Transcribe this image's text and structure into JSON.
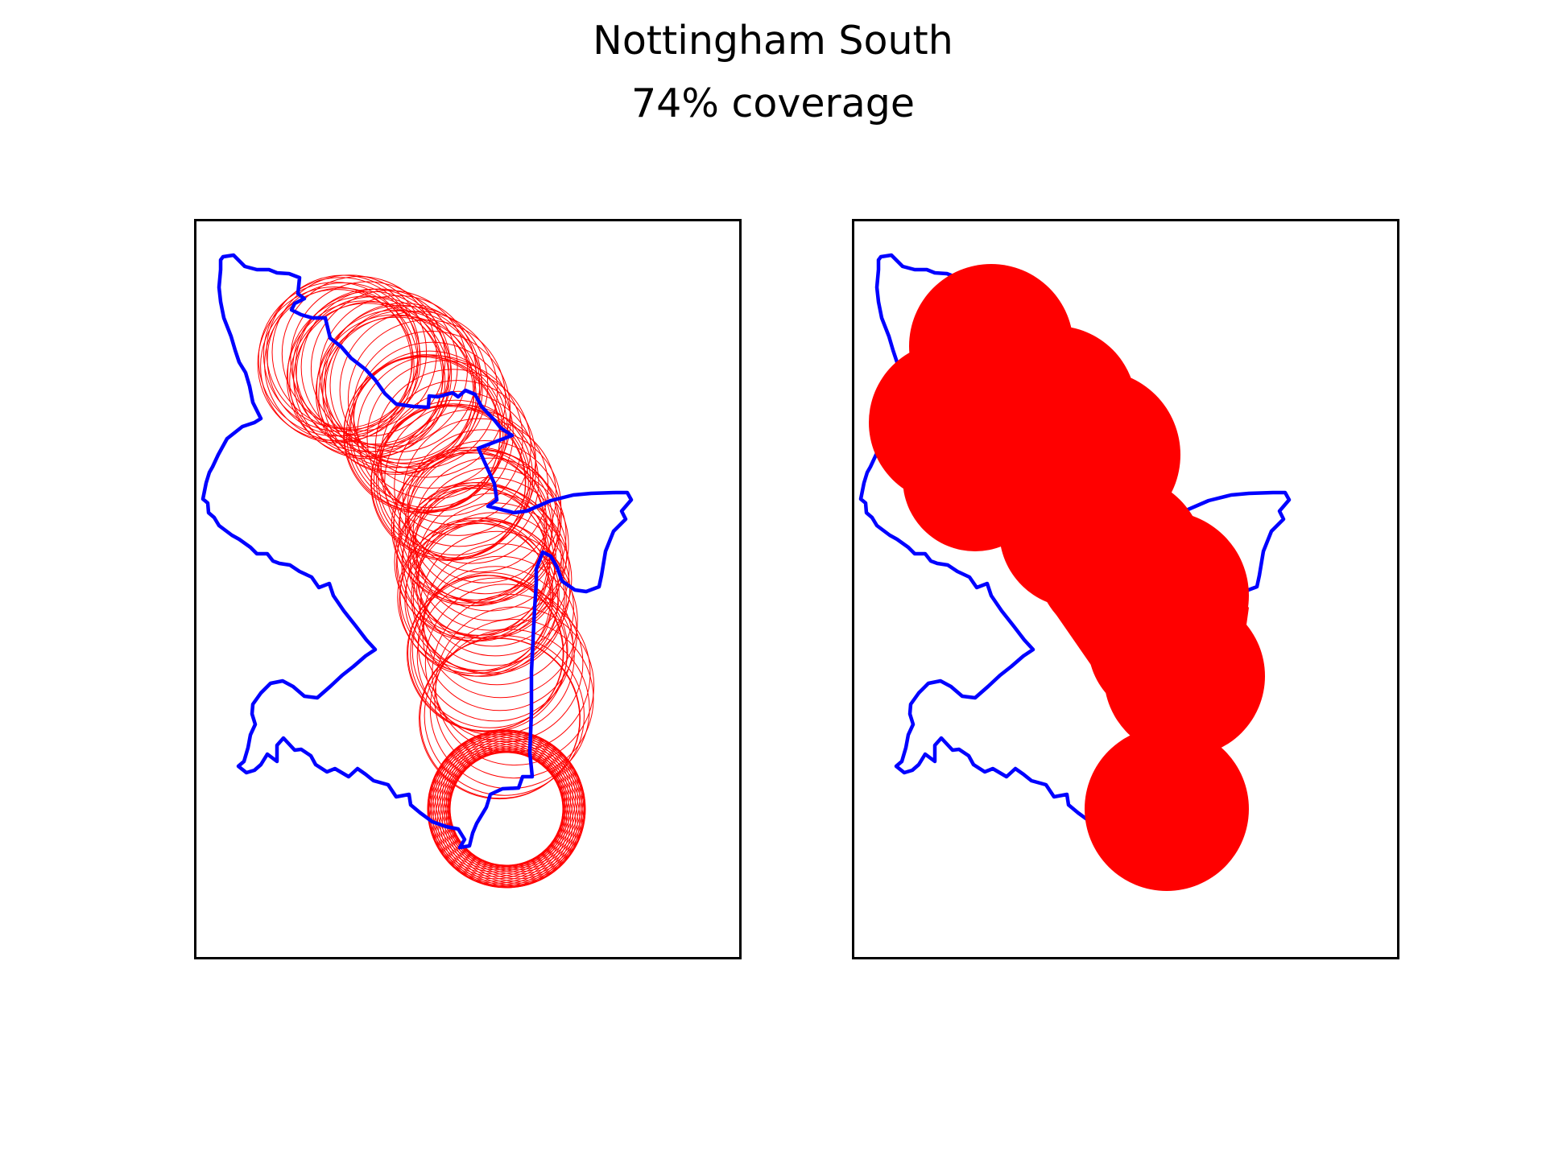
{
  "figure": {
    "title": "Nottingham South",
    "subtitle": "74% coverage"
  },
  "colors": {
    "boundary": "#0000ff",
    "coverage": "#ff0000",
    "frame": "#000000",
    "background": "#ffffff"
  },
  "panels": [
    {
      "name": "left",
      "style": "overlapping circle outlines"
    },
    {
      "name": "right",
      "style": "filled coverage union"
    }
  ]
}
